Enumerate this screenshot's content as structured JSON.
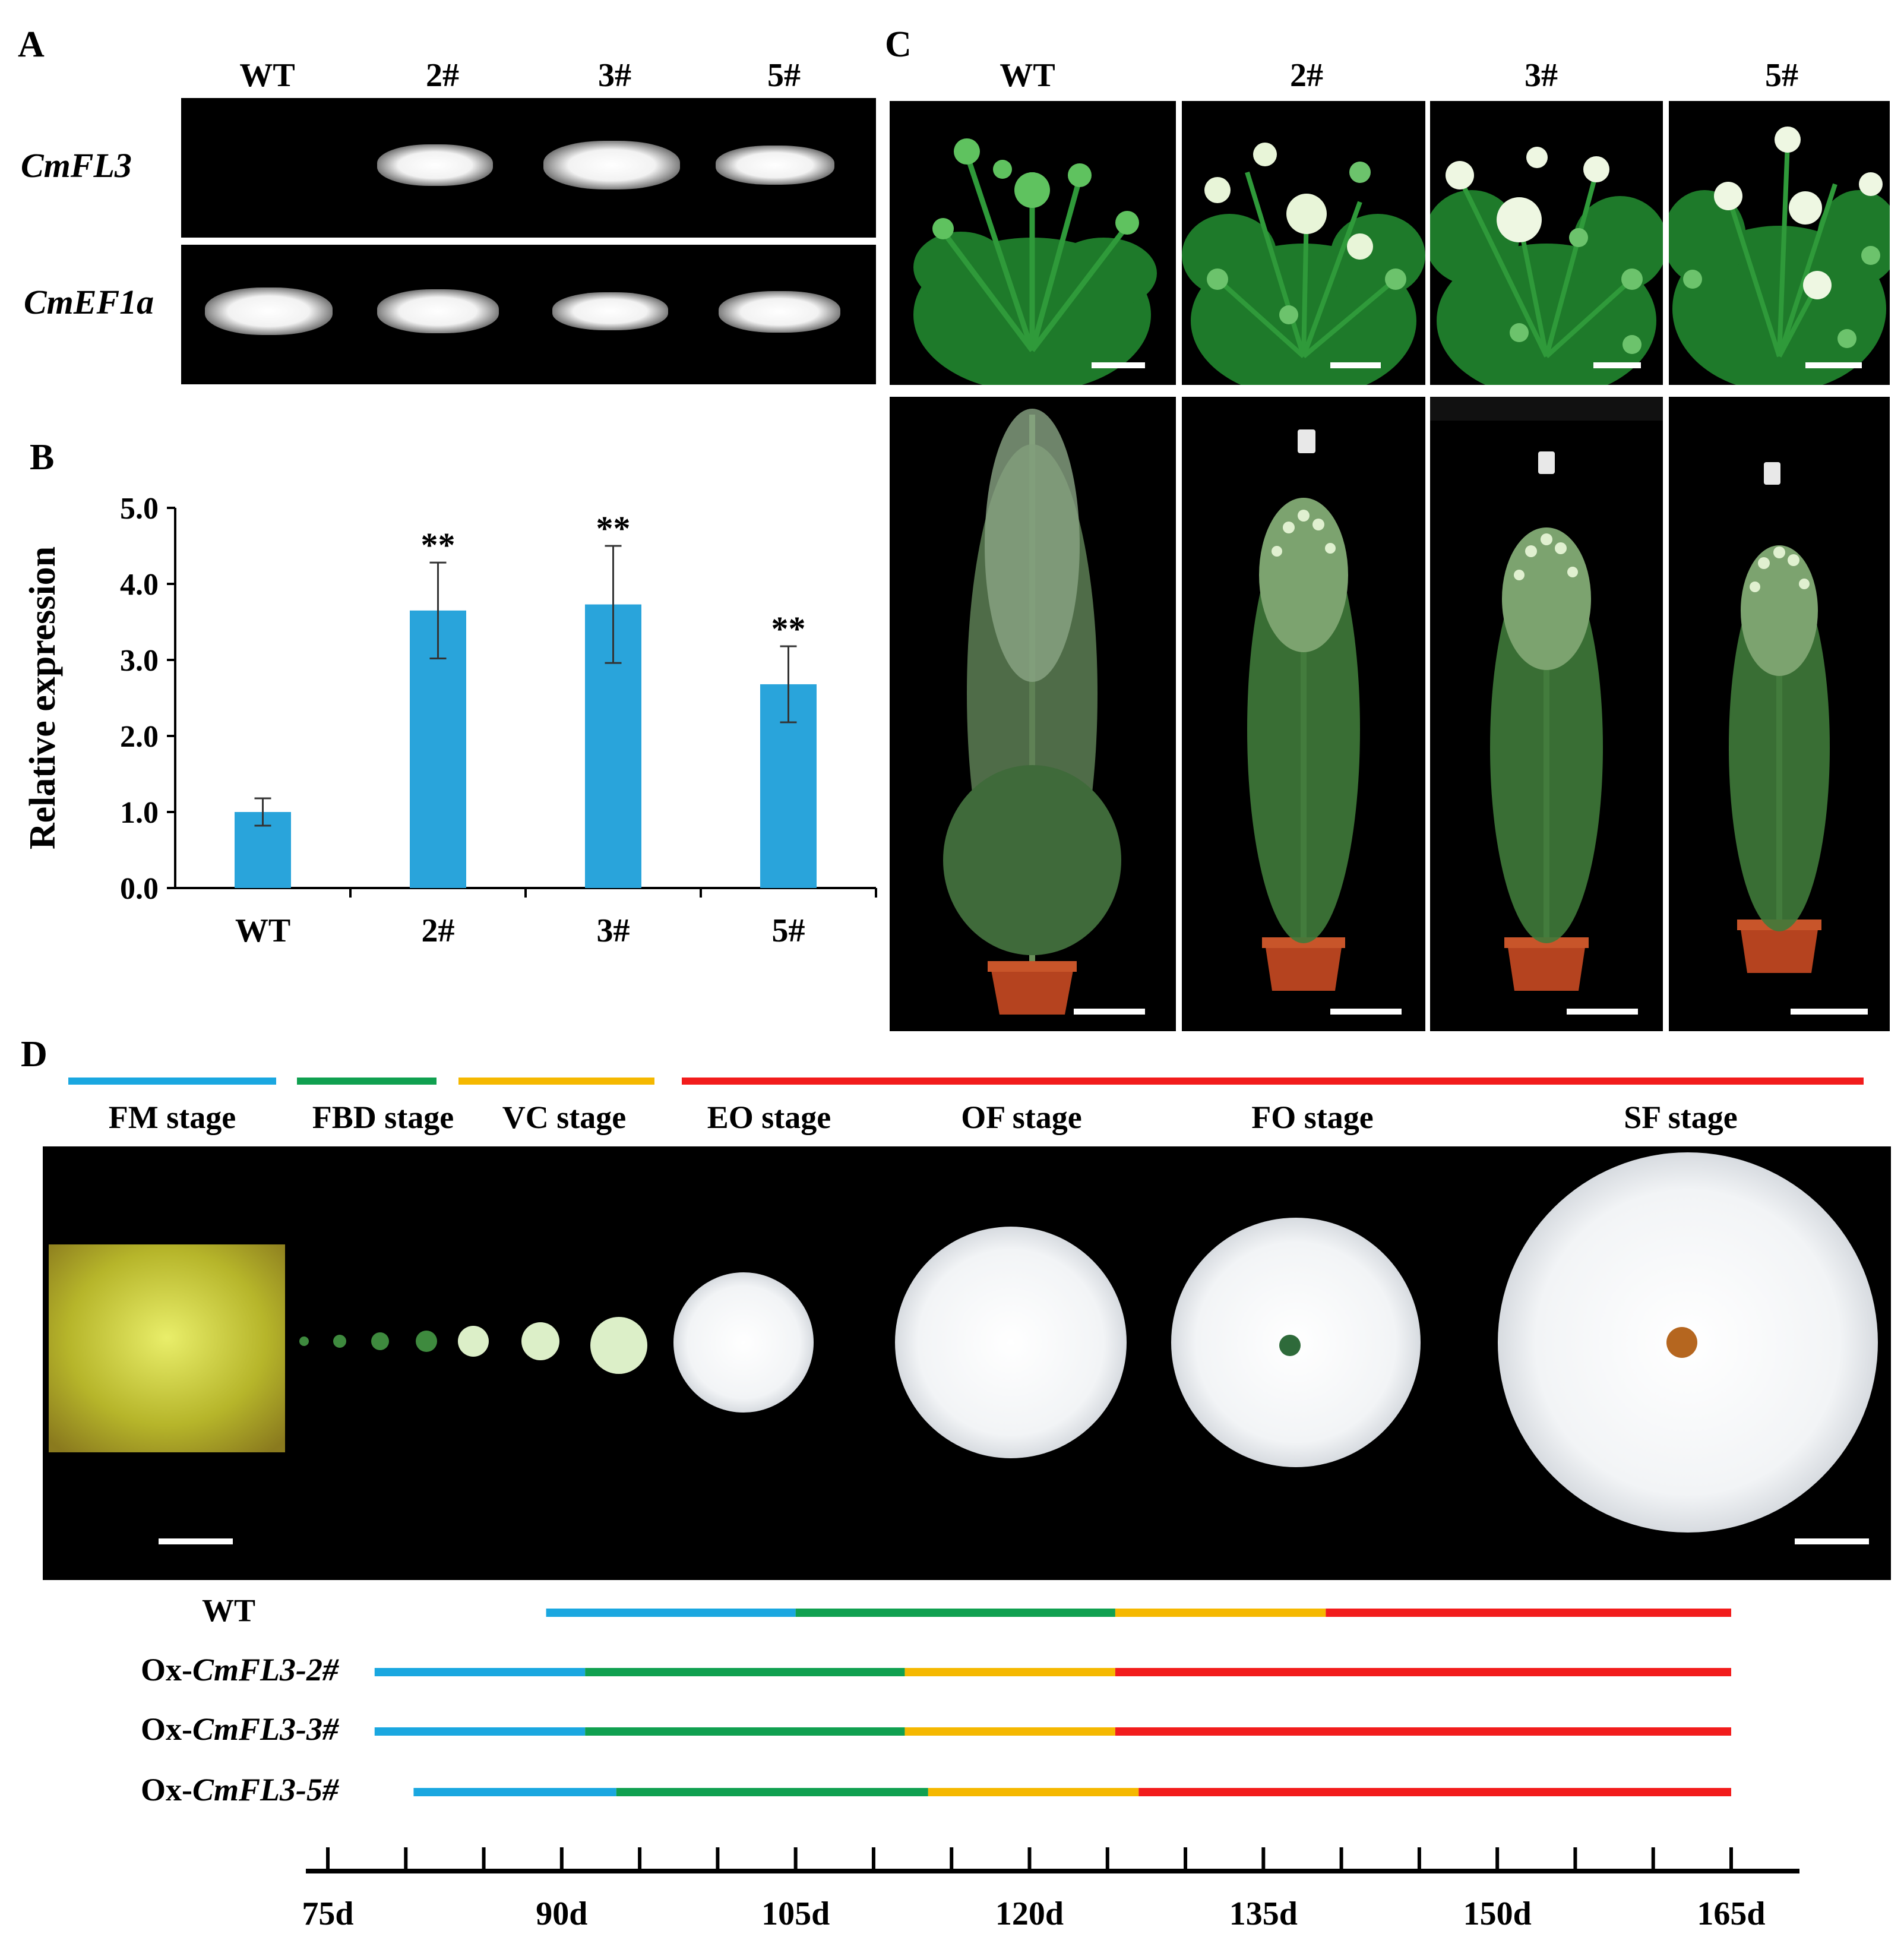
{
  "panels": {
    "a": "A",
    "b": "B",
    "c": "C",
    "d": "D"
  },
  "panel_a": {
    "lanes": [
      "WT",
      "2#",
      "3#",
      "5#"
    ],
    "genes": [
      "CmFL3",
      "CmEF1a"
    ]
  },
  "panel_c": {
    "lanes": [
      "WT",
      "2#",
      "3#",
      "5#"
    ]
  },
  "chart_data": {
    "type": "bar",
    "categories": [
      "WT",
      "2#",
      "3#",
      "5#"
    ],
    "values": [
      1.0,
      3.65,
      3.73,
      2.68
    ],
    "errors": [
      0.18,
      0.63,
      0.77,
      0.5
    ],
    "significance": [
      "",
      "**",
      "**",
      "**"
    ],
    "ylabel": "Relative expression",
    "ylim": [
      0,
      5
    ],
    "yticks": [
      "0.0",
      "1.0",
      "2.0",
      "3.0",
      "4.0",
      "5.0"
    ],
    "bar_color": "#29a4db"
  },
  "panel_d": {
    "stages": [
      "FM stage",
      "FBD stage",
      "VC stage",
      "EO stage",
      "OF stage",
      "FO stage",
      "SF stage"
    ],
    "stage_colors": {
      "FM": "#1aa7e0",
      "FBD": "#10a050",
      "VC": "#f5b800",
      "EO_to_SF": "#f21c1c"
    },
    "lines": [
      {
        "prefix": "",
        "italic": "",
        "suffix": "WT",
        "fm": 89,
        "fbd": 105,
        "vc": 125.5,
        "flower": 139,
        "end": 165
      },
      {
        "prefix": "Ox-",
        "italic": "CmFL3-2#",
        "suffix": "",
        "fm": 78,
        "fbd": 91.5,
        "vc": 112,
        "flower": 125.5,
        "end": 165
      },
      {
        "prefix": "Ox-",
        "italic": "CmFL3-3#",
        "suffix": "",
        "fm": 78,
        "fbd": 91.5,
        "vc": 112,
        "flower": 125.5,
        "end": 165
      },
      {
        "prefix": "Ox-",
        "italic": "CmFL3-5#",
        "suffix": "",
        "fm": 80.5,
        "fbd": 93.5,
        "vc": 113.5,
        "flower": 127,
        "end": 165
      }
    ],
    "axis_ticks": [
      "75d",
      "90d",
      "105d",
      "120d",
      "135d",
      "150d",
      "165d"
    ],
    "axis_range": [
      75,
      165
    ]
  }
}
